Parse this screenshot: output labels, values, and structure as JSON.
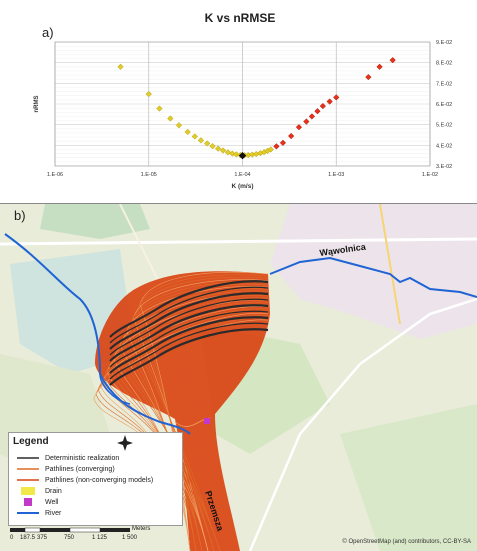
{
  "panel_a_label": "a)",
  "panel_b_label": "b)",
  "colors": {
    "diamond_yellow": "#e1cc28",
    "diamond_red": "#e8301a",
    "best_marker": "#111111",
    "river": "#1f63d4",
    "pathline_converging": "#e06a28",
    "pathline_nonconverging": "#d94414",
    "deterministic": "#2b2b2b",
    "drain": "#f3e84a",
    "well": "#c238c8"
  },
  "chart_data": {
    "type": "scatter",
    "title": "K vs nRMSE",
    "xlabel": "K (m/s)",
    "ylabel": "nRMS",
    "x_scale": "log",
    "xlim": [
      1e-06,
      0.01
    ],
    "ylim": [
      0.03,
      0.09
    ],
    "x_tick_labels": [
      "1.E-06",
      "1.E-05",
      "1.E-04",
      "1.E-03",
      "1.E-02"
    ],
    "y_tick_labels": [
      "3.E-02",
      "4.E-02",
      "5.E-02",
      "6.E-02",
      "7.E-02",
      "8.E-02",
      "9.E-02"
    ],
    "grid": true,
    "series": [
      {
        "marker": "diamond-yellow",
        "points": [
          [
            5e-06,
            0.078
          ],
          [
            1e-05,
            0.0648
          ],
          [
            1.3e-05,
            0.0578
          ],
          [
            1.7e-05,
            0.053
          ],
          [
            2.1e-05,
            0.0497
          ],
          [
            2.6e-05,
            0.0465
          ],
          [
            3.1e-05,
            0.0443
          ],
          [
            3.6e-05,
            0.0424
          ],
          [
            4.2e-05,
            0.0409
          ],
          [
            4.8e-05,
            0.0396
          ],
          [
            5.5e-05,
            0.0384
          ],
          [
            6.2e-05,
            0.0375
          ],
          [
            7e-05,
            0.0366
          ],
          [
            7.8e-05,
            0.036
          ],
          [
            8.6e-05,
            0.0356
          ],
          [
            9.5e-05,
            0.0353
          ],
          [
            0.000105,
            0.0352
          ],
          [
            0.000115,
            0.0353
          ],
          [
            0.000127,
            0.0355
          ],
          [
            0.00014,
            0.0358
          ],
          [
            0.000155,
            0.0362
          ],
          [
            0.00017,
            0.0367
          ],
          [
            0.000185,
            0.0373
          ],
          [
            0.0002,
            0.038
          ]
        ]
      },
      {
        "marker": "diamond-red",
        "points": [
          [
            0.00023,
            0.0395
          ],
          [
            0.00027,
            0.0412
          ],
          [
            0.00033,
            0.0445
          ],
          [
            0.0004,
            0.0488
          ],
          [
            0.00048,
            0.0515
          ],
          [
            0.00055,
            0.054
          ],
          [
            0.00063,
            0.0565
          ],
          [
            0.00072,
            0.059
          ],
          [
            0.00085,
            0.0612
          ],
          [
            0.001,
            0.0632
          ],
          [
            0.0022,
            0.073
          ],
          [
            0.0029,
            0.078
          ],
          [
            0.004,
            0.0812
          ]
        ]
      },
      {
        "marker": "diamond-black",
        "points": [
          [
            0.0001,
            0.035
          ]
        ]
      }
    ]
  },
  "map": {
    "labels": {
      "river_upper": "Wąwolnica",
      "river_lower": "Przemsza"
    },
    "legend": {
      "title": "Legend",
      "items": [
        {
          "label": "Deterministic realization",
          "symbol": "line-dark"
        },
        {
          "label": "Pathlines (converging)",
          "symbol": "line-orange"
        },
        {
          "label": "Pathlines (non-converging models)",
          "symbol": "line-red"
        },
        {
          "label": "Drain",
          "symbol": "fill-yellow"
        },
        {
          "label": "Well",
          "symbol": "fill-magenta"
        },
        {
          "label": "River",
          "symbol": "line-blue"
        }
      ]
    },
    "scale_ticks": [
      "0",
      "187.5",
      "375",
      "750",
      "1 125",
      "1 500"
    ],
    "scale_unit": "Meters",
    "attribution": "© OpenStreetMap (and) contributors, CC-BY-SA"
  }
}
